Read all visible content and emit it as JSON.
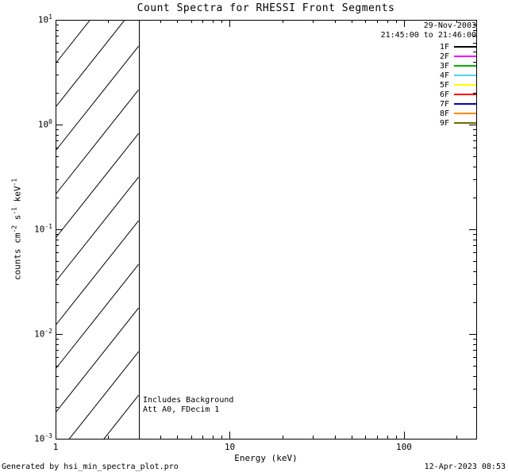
{
  "title": "Count Spectra for RHESSI Front Segments",
  "obs_date": "29-Nov-2003",
  "obs_time_range": "21:45:00 to 21:46:00",
  "legend": {
    "entries": [
      {
        "label": "1F",
        "color": "#000000"
      },
      {
        "label": "2F",
        "color": "#ff00ff"
      },
      {
        "label": "3F",
        "color": "#00b400"
      },
      {
        "label": "4F",
        "color": "#4dd2ff"
      },
      {
        "label": "5F",
        "color": "#ffff00"
      },
      {
        "label": "6F",
        "color": "#ff0000"
      },
      {
        "label": "7F",
        "color": "#0000c8"
      },
      {
        "label": "8F",
        "color": "#ff8800"
      },
      {
        "label": "9F",
        "color": "#6b6e00"
      }
    ]
  },
  "annotations": [
    "Includes Background",
    "Att A0, FDecim 1"
  ],
  "footer": {
    "left": "Generated by hsi_min_spectra_plot.pro",
    "right": "12-Apr-2023 08:53"
  },
  "chart_data": {
    "type": "line",
    "title": "Count Spectra for RHESSI Front Segments",
    "xlabel": "Energy (keV)",
    "ylabel": "counts cm^-2 s^-1 keV^-1",
    "ylabel_parts": [
      {
        "t": "counts cm"
      },
      {
        "s": "-2"
      },
      {
        "t": " s"
      },
      {
        "s": "-1"
      },
      {
        "t": " keV"
      },
      {
        "s": "-1"
      }
    ],
    "x_scale": "log",
    "y_scale": "log",
    "xlim": [
      1,
      260
    ],
    "ylim": [
      0.001,
      10
    ],
    "x_major_ticks": [
      1,
      10,
      100
    ],
    "y_major_ticks": [
      0.001,
      0.01,
      0.1,
      1,
      10
    ],
    "grid": false,
    "legend_position": "top-right-inside",
    "series": [],
    "hatched_region": {
      "x_min": 1,
      "x_max": 3,
      "y_min": 0.001,
      "y_max": 10,
      "style": "diagonal-hatch"
    }
  }
}
